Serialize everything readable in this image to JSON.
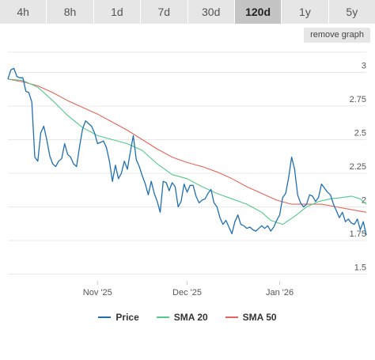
{
  "range_tabs": [
    {
      "label": "4h"
    },
    {
      "label": "8h"
    },
    {
      "label": "1d"
    },
    {
      "label": "7d"
    },
    {
      "label": "30d"
    },
    {
      "label": "120d",
      "active": true
    },
    {
      "label": "1y"
    },
    {
      "label": "5y"
    }
  ],
  "remove_graph_label": "remove graph",
  "colors": {
    "price": "#1f6fb2",
    "sma20": "#52c98a",
    "sma50": "#e8635a",
    "grid": "#e8e8e8",
    "active_tab": "#c4c4c4"
  },
  "chart_data": {
    "type": "line",
    "title": "",
    "xlabel": "",
    "ylabel": "",
    "ylim": [
      1.45,
      3.15
    ],
    "yticks": [
      3,
      2.75,
      2.5,
      2.25,
      2,
      1.75,
      1.5
    ],
    "ytick_labels": [
      "3",
      "2.75",
      "2.5",
      "2.25",
      "2",
      "1.75",
      "1.5"
    ],
    "xlim": [
      0,
      120
    ],
    "xticks": [
      {
        "day": 30,
        "label": "Nov '25"
      },
      {
        "day": 60,
        "label": "Dec '25"
      },
      {
        "day": 91,
        "label": "Jan '26"
      }
    ],
    "grid": true,
    "legend": "bottom",
    "series": [
      {
        "name": "Price",
        "key": "price",
        "x": [
          0,
          1,
          2,
          3,
          4,
          5,
          6,
          7,
          8,
          9,
          10,
          11,
          12,
          13,
          14,
          15,
          16,
          17,
          18,
          19,
          20,
          21,
          22,
          23,
          24,
          25,
          26,
          27,
          28,
          29,
          30,
          31,
          32,
          33,
          34,
          35,
          36,
          37,
          38,
          39,
          40,
          41,
          42,
          43,
          44,
          45,
          46,
          47,
          48,
          49,
          50,
          51,
          52,
          53,
          54,
          55,
          56,
          57,
          58,
          59,
          60,
          61,
          62,
          63,
          64,
          65,
          66,
          67,
          68,
          69,
          70,
          71,
          72,
          73,
          74,
          75,
          76,
          77,
          78,
          79,
          80,
          81,
          82,
          83,
          84,
          85,
          86,
          87,
          88,
          89,
          90,
          91,
          92,
          93,
          94,
          95,
          96,
          97,
          98,
          99,
          100,
          101,
          102,
          103,
          104,
          105,
          106,
          107,
          108,
          109,
          110,
          111,
          112,
          113,
          114,
          115,
          116,
          117,
          118,
          119,
          120
        ],
        "values": [
          2.95,
          3.02,
          3.03,
          2.97,
          2.96,
          2.96,
          2.86,
          2.85,
          2.78,
          2.37,
          2.34,
          2.55,
          2.6,
          2.5,
          2.38,
          2.32,
          2.3,
          2.34,
          2.36,
          2.47,
          2.39,
          2.37,
          2.32,
          2.3,
          2.45,
          2.58,
          2.64,
          2.62,
          2.6,
          2.55,
          2.47,
          2.48,
          2.49,
          2.44,
          2.34,
          2.19,
          2.31,
          2.21,
          2.25,
          2.34,
          2.28,
          2.41,
          2.53,
          2.35,
          2.3,
          2.23,
          2.17,
          2.09,
          2.19,
          2.1,
          2.04,
          1.96,
          2.19,
          2.18,
          2.12,
          2.18,
          2.15,
          2.0,
          2.04,
          2.17,
          2.11,
          2.16,
          2.16,
          2.08,
          2.03,
          2.05,
          2.06,
          2.1,
          2.13,
          2.03,
          2.0,
          1.92,
          1.87,
          1.9,
          1.85,
          1.8,
          1.89,
          1.94,
          1.87,
          1.86,
          1.84,
          1.85,
          1.83,
          1.82,
          1.84,
          1.86,
          1.84,
          1.86,
          1.82,
          1.85,
          1.9,
          1.94,
          2.07,
          2.1,
          2.22,
          2.37,
          2.28,
          2.09,
          2.03,
          2.0,
          2.02,
          2.09,
          2.08,
          2.04,
          2.07,
          2.17,
          2.14,
          2.11,
          2.09,
          2.02,
          1.97,
          1.92,
          1.96,
          1.89,
          1.91,
          1.88,
          1.87,
          1.91,
          1.83,
          1.89,
          1.79
        ]
      },
      {
        "name": "SMA 20",
        "key": "sma20",
        "x": [
          0,
          5,
          10,
          15,
          20,
          25,
          30,
          35,
          40,
          45,
          50,
          55,
          60,
          65,
          70,
          75,
          80,
          85,
          88,
          92,
          96,
          100,
          104,
          108,
          112,
          115,
          118,
          120
        ],
        "values": [
          2.95,
          2.94,
          2.89,
          2.79,
          2.68,
          2.59,
          2.53,
          2.5,
          2.47,
          2.42,
          2.32,
          2.24,
          2.21,
          2.15,
          2.1,
          2.06,
          2.02,
          1.96,
          1.9,
          1.87,
          1.93,
          2.0,
          2.04,
          2.06,
          2.07,
          2.08,
          2.06,
          2.02
        ]
      },
      {
        "name": "SMA 50",
        "key": "sma50",
        "x": [
          0,
          5,
          10,
          15,
          20,
          25,
          30,
          35,
          40,
          45,
          50,
          55,
          60,
          65,
          70,
          75,
          80,
          85,
          90,
          95,
          100,
          105,
          110,
          115,
          120
        ],
        "values": [
          2.95,
          2.93,
          2.9,
          2.85,
          2.79,
          2.74,
          2.69,
          2.63,
          2.57,
          2.5,
          2.43,
          2.37,
          2.33,
          2.3,
          2.26,
          2.21,
          2.15,
          2.1,
          2.05,
          2.02,
          2.02,
          2.02,
          2.0,
          1.98,
          1.96
        ]
      }
    ]
  }
}
